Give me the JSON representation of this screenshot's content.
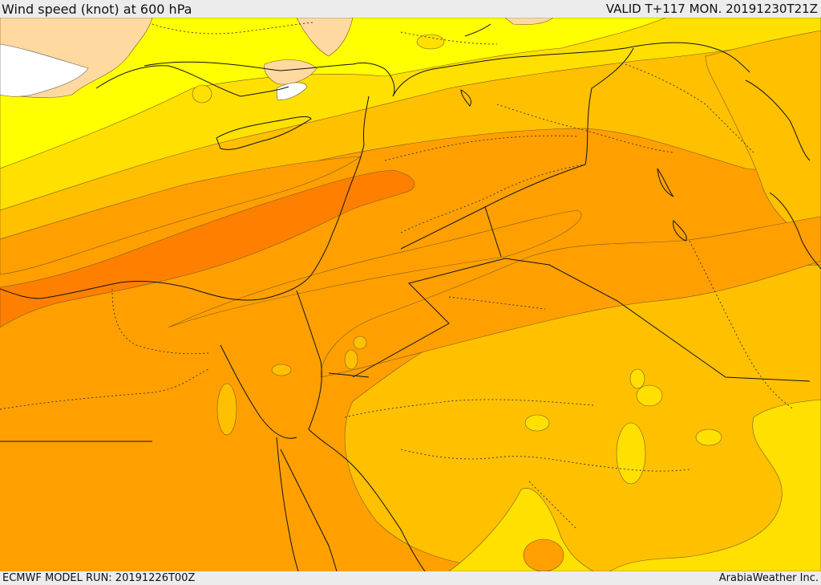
{
  "header": {
    "title": "Wind speed (knot) at 600 hPa",
    "valid": "VALID T+117 MON. 20191230T21Z"
  },
  "footer": {
    "model_run": "ECMWF MODEL RUN: 20191226T00Z",
    "credit": "ArabiaWeather Inc."
  },
  "legend_colors": {
    "land_low": "#ffd9a0",
    "no_data": "#ffffff",
    "band_1": "#ffff00",
    "band_2": "#ffe000",
    "band_3": "#ffc000",
    "band_4": "#ffa000",
    "band_5": "#ff8000"
  }
}
